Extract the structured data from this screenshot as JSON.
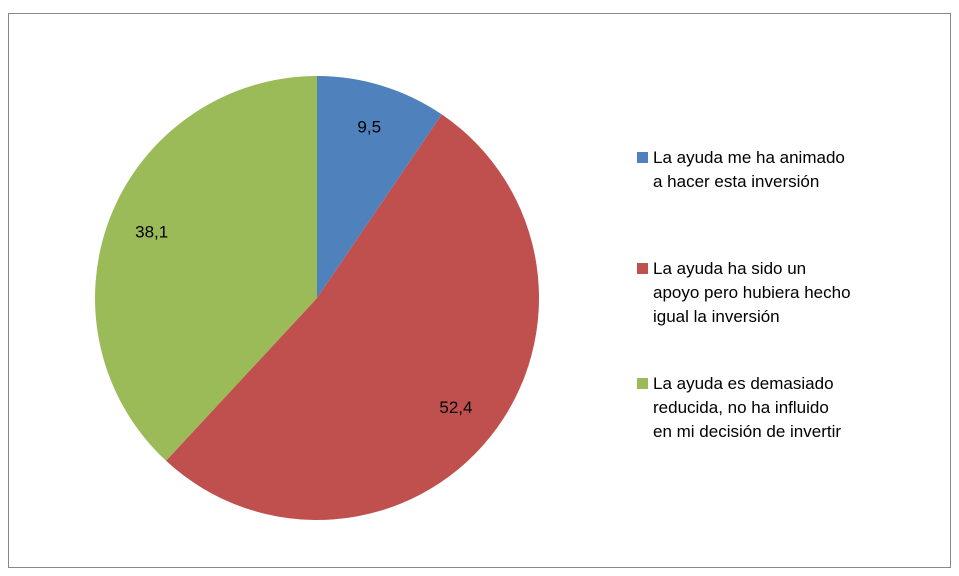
{
  "chart_data": {
    "type": "pie",
    "categories": [
      "La ayuda me ha animado a hacer esta inversión",
      "La ayuda ha sido un apoyo pero hubiera hecho igual la inversión",
      "La ayuda es demasiado reducida, no ha influido en mi decisión de invertir"
    ],
    "values": [
      9.5,
      52.4,
      38.1
    ],
    "value_labels": [
      "9,5",
      "52,4",
      "38,1"
    ],
    "colors": [
      "#4f81bd",
      "#c0504d",
      "#9bbb59"
    ],
    "legend": "right"
  }
}
